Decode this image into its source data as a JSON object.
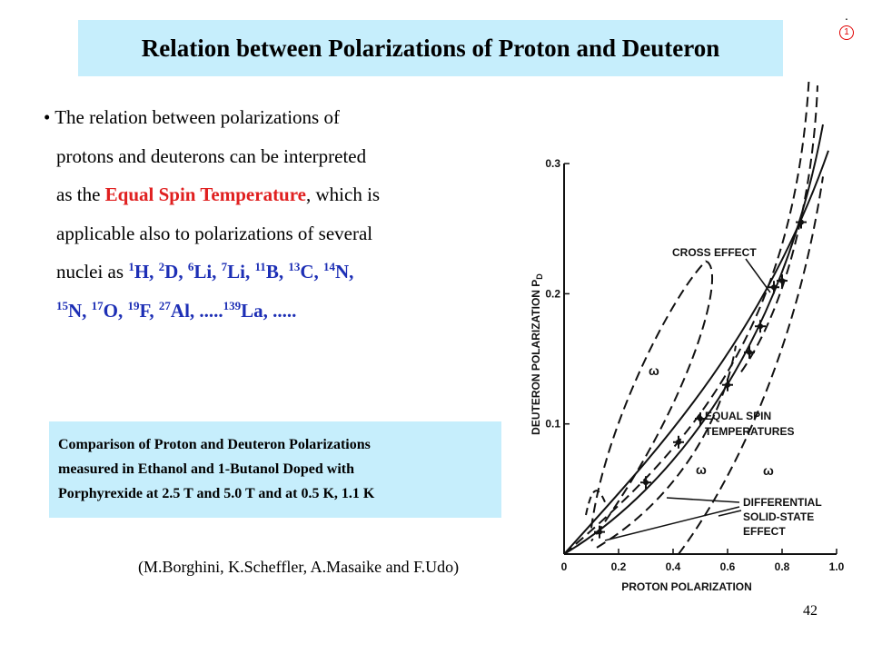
{
  "title": "Relation between Polarizations of Proton and Deuteron",
  "slide_marker": {
    "dot": ".",
    "number": "1"
  },
  "body": {
    "bullet": "•",
    "line1": "The relation between polarizations of",
    "line2": "protons and deuterons can be interpreted",
    "line3_pre": "as the ",
    "line3_em": "Equal Spin Temperature",
    "line3_post": ", which is",
    "line4": "applicable also to polarizations of several",
    "line5_pre": "nuclei as ",
    "nuclei": [
      {
        "mass": "1",
        "sym": "H",
        "sep": ", "
      },
      {
        "mass": "2",
        "sym": "D",
        "sep": ", "
      },
      {
        "mass": "6",
        "sym": "Li",
        "sep": ", "
      },
      {
        "mass": "7",
        "sym": "Li",
        "sep": ", "
      },
      {
        "mass": "11",
        "sym": "B",
        "sep": ", "
      },
      {
        "mass": "13",
        "sym": "C",
        "sep": ", "
      },
      {
        "mass": "14",
        "sym": "N",
        "sep": ","
      },
      {
        "mass": "15",
        "sym": "N",
        "sep": ", "
      },
      {
        "mass": "17",
        "sym": "O",
        "sep": ", "
      },
      {
        "mass": "19",
        "sym": "F",
        "sep": ", "
      },
      {
        "mass": "27",
        "sym": "Al",
        "sep": ", ....."
      },
      {
        "mass": "139",
        "sym": "La",
        "sep": ", ....."
      }
    ]
  },
  "caption": {
    "line1": "Comparison of Proton and Deuteron Polarizations",
    "line2": "measured in Ethanol and 1-Butanol Doped with",
    "line3": "Porphyrexide at 2.5 T and 5.0 T and at 0.5 K, 1.1 K"
  },
  "credit": "(M.Borghini, K.Scheffler, A.Masaike and F.Udo)",
  "page_number": "42",
  "figure": {
    "x_axis_label": "PROTON POLARIZATION",
    "y_axis_label": "DEUTERON POLARIZATION P",
    "y_axis_subscript": "D",
    "x_ticks": [
      "0",
      "0.2",
      "0.4",
      "0.6",
      "0.8",
      "1.0"
    ],
    "y_ticks": [
      "0.1",
      "0.2",
      "0.3"
    ],
    "labels": {
      "cross_effect": "CROSS EFFECT",
      "equal_spin_1": "EQUAL SPIN",
      "equal_spin_2": "TEMPERATURES",
      "diff_1": "DIFFERENTIAL",
      "diff_2": "SOLID-STATE",
      "diff_3": "EFFECT",
      "omega": "ω"
    },
    "data_points": [
      {
        "p": 0.13,
        "d": 0.017
      },
      {
        "p": 0.3,
        "d": 0.055
      },
      {
        "p": 0.42,
        "d": 0.086
      },
      {
        "p": 0.5,
        "d": 0.104
      },
      {
        "p": 0.6,
        "d": 0.13
      },
      {
        "p": 0.68,
        "d": 0.155
      },
      {
        "p": 0.72,
        "d": 0.175
      },
      {
        "p": 0.77,
        "d": 0.205
      },
      {
        "p": 0.8,
        "d": 0.21
      },
      {
        "p": 0.87,
        "d": 0.255
      }
    ]
  },
  "colors": {
    "title_box": "#c6eefc",
    "caption_box": "#c6eefc",
    "emphasis_red": "#e02020",
    "nuclei_blue": "#1d2fb5"
  }
}
